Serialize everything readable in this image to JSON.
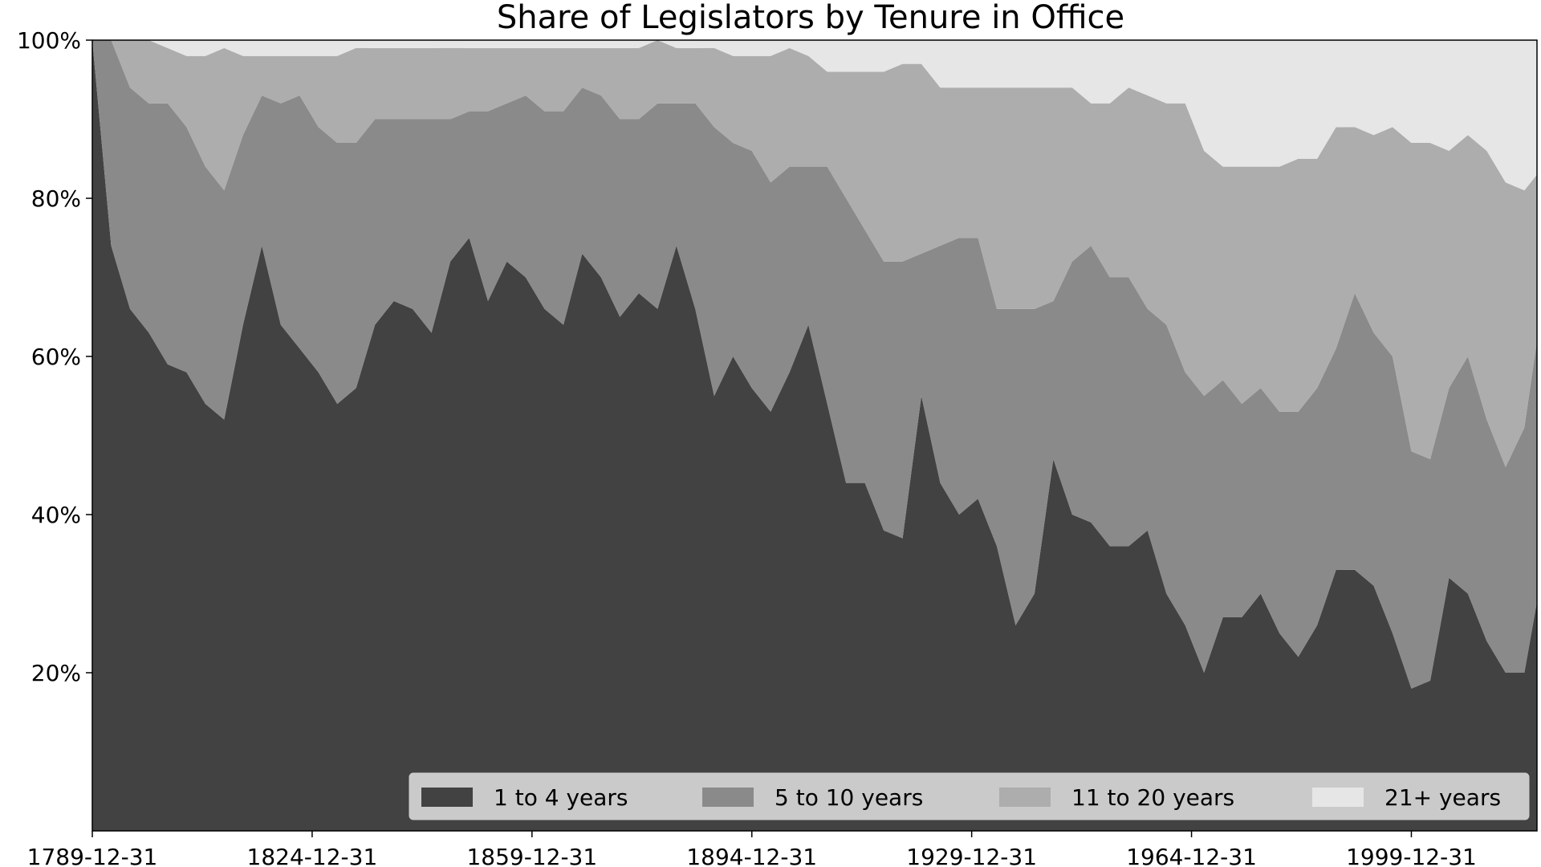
{
  "chart_data": {
    "type": "area",
    "stacked": true,
    "normalized": true,
    "title": "Share of Legislators by Tenure in Office",
    "xlabel": "",
    "ylabel": "",
    "ylim": [
      0,
      1
    ],
    "x_tick_labels": [
      "1789-12-31",
      "1824-12-31",
      "1859-12-31",
      "1894-12-31",
      "1929-12-31",
      "1964-12-31",
      "1999-12-31"
    ],
    "x_tick_years": [
      1789,
      1824,
      1859,
      1894,
      1929,
      1964,
      1999
    ],
    "x_range": [
      1789,
      2019
    ],
    "y_tick_labels": [
      "20%",
      "40%",
      "60%",
      "80%",
      "100%"
    ],
    "y_tick_values": [
      0.2,
      0.4,
      0.6,
      0.8,
      1.0
    ],
    "legend_position": "lower-right",
    "grid": false,
    "x": [
      1789,
      1792,
      1795,
      1798,
      1801,
      1804,
      1807,
      1810,
      1813,
      1816,
      1819,
      1822,
      1825,
      1828,
      1831,
      1834,
      1837,
      1840,
      1843,
      1846,
      1849,
      1852,
      1855,
      1858,
      1861,
      1864,
      1867,
      1870,
      1873,
      1876,
      1879,
      1882,
      1885,
      1888,
      1891,
      1894,
      1897,
      1900,
      1903,
      1906,
      1909,
      1912,
      1915,
      1918,
      1921,
      1924,
      1927,
      1930,
      1933,
      1936,
      1939,
      1942,
      1945,
      1948,
      1951,
      1954,
      1957,
      1960,
      1963,
      1966,
      1969,
      1972,
      1975,
      1978,
      1981,
      1984,
      1987,
      1990,
      1993,
      1996,
      1999,
      2002,
      2005,
      2008,
      2011,
      2014,
      2017,
      2019
    ],
    "series": [
      {
        "name": "1 to 4 years",
        "color": "#424242",
        "values": [
          1.0,
          0.74,
          0.66,
          0.63,
          0.59,
          0.58,
          0.54,
          0.52,
          0.64,
          0.74,
          0.64,
          0.61,
          0.58,
          0.54,
          0.56,
          0.64,
          0.67,
          0.66,
          0.63,
          0.72,
          0.75,
          0.67,
          0.72,
          0.7,
          0.66,
          0.64,
          0.73,
          0.7,
          0.65,
          0.68,
          0.66,
          0.74,
          0.66,
          0.55,
          0.6,
          0.56,
          0.53,
          0.58,
          0.64,
          0.54,
          0.44,
          0.44,
          0.38,
          0.37,
          0.55,
          0.44,
          0.4,
          0.42,
          0.36,
          0.26,
          0.3,
          0.47,
          0.4,
          0.39,
          0.36,
          0.36,
          0.38,
          0.3,
          0.26,
          0.2,
          0.27,
          0.27,
          0.3,
          0.25,
          0.22,
          0.26,
          0.33,
          0.33,
          0.31,
          0.25,
          0.18,
          0.19,
          0.32,
          0.3,
          0.24,
          0.2,
          0.2,
          0.29
        ],
        "legend_label": "1 to 4 years"
      },
      {
        "name": "5 to 10 years",
        "color": "#8a8a8a",
        "values": [
          0.0,
          0.26,
          0.28,
          0.29,
          0.33,
          0.31,
          0.3,
          0.29,
          0.24,
          0.19,
          0.28,
          0.32,
          0.31,
          0.33,
          0.31,
          0.26,
          0.23,
          0.24,
          0.27,
          0.18,
          0.16,
          0.24,
          0.2,
          0.23,
          0.25,
          0.27,
          0.21,
          0.23,
          0.25,
          0.22,
          0.26,
          0.18,
          0.26,
          0.34,
          0.27,
          0.3,
          0.29,
          0.26,
          0.2,
          0.3,
          0.36,
          0.32,
          0.34,
          0.35,
          0.18,
          0.3,
          0.35,
          0.33,
          0.3,
          0.4,
          0.36,
          0.2,
          0.32,
          0.35,
          0.34,
          0.34,
          0.28,
          0.34,
          0.32,
          0.35,
          0.3,
          0.27,
          0.26,
          0.28,
          0.31,
          0.3,
          0.28,
          0.35,
          0.32,
          0.35,
          0.3,
          0.28,
          0.24,
          0.3,
          0.28,
          0.26,
          0.31,
          0.33
        ],
        "legend_label": "5 to 10 years"
      },
      {
        "name": "11 to 20 years",
        "color": "#adadad",
        "values": [
          0.0,
          0.0,
          0.06,
          0.08,
          0.07,
          0.09,
          0.14,
          0.18,
          0.1,
          0.05,
          0.06,
          0.05,
          0.09,
          0.11,
          0.12,
          0.09,
          0.09,
          0.09,
          0.09,
          0.09,
          0.08,
          0.08,
          0.07,
          0.06,
          0.08,
          0.08,
          0.05,
          0.06,
          0.09,
          0.09,
          0.08,
          0.07,
          0.07,
          0.1,
          0.11,
          0.12,
          0.16,
          0.15,
          0.14,
          0.12,
          0.16,
          0.2,
          0.24,
          0.25,
          0.24,
          0.2,
          0.19,
          0.19,
          0.28,
          0.28,
          0.28,
          0.27,
          0.22,
          0.18,
          0.22,
          0.24,
          0.27,
          0.28,
          0.34,
          0.31,
          0.27,
          0.3,
          0.28,
          0.31,
          0.32,
          0.29,
          0.28,
          0.21,
          0.25,
          0.29,
          0.39,
          0.4,
          0.3,
          0.28,
          0.34,
          0.36,
          0.3,
          0.21
        ],
        "legend_label": "11 to 20 years"
      },
      {
        "name": "21+ years",
        "color": "#e6e6e6",
        "values": [
          0.0,
          0.0,
          0.0,
          0.0,
          0.01,
          0.02,
          0.02,
          0.01,
          0.02,
          0.02,
          0.02,
          0.02,
          0.02,
          0.02,
          0.01,
          0.01,
          0.01,
          0.01,
          0.01,
          0.01,
          0.01,
          0.01,
          0.01,
          0.01,
          0.01,
          0.01,
          0.01,
          0.01,
          0.01,
          0.01,
          0.0,
          0.01,
          0.01,
          0.01,
          0.02,
          0.02,
          0.02,
          0.01,
          0.02,
          0.04,
          0.04,
          0.04,
          0.04,
          0.03,
          0.03,
          0.06,
          0.06,
          0.06,
          0.06,
          0.06,
          0.06,
          0.06,
          0.06,
          0.08,
          0.08,
          0.06,
          0.07,
          0.08,
          0.08,
          0.14,
          0.16,
          0.16,
          0.16,
          0.16,
          0.15,
          0.15,
          0.11,
          0.11,
          0.12,
          0.11,
          0.13,
          0.13,
          0.14,
          0.12,
          0.14,
          0.18,
          0.19,
          0.17
        ],
        "legend_label": "21+ years"
      }
    ]
  }
}
